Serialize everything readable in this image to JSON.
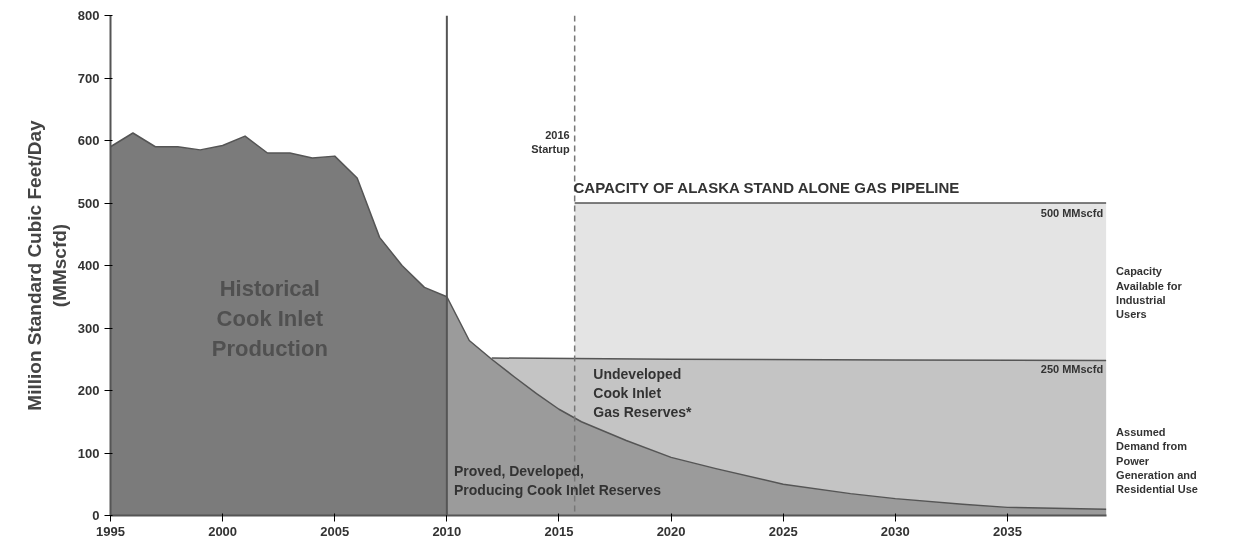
{
  "chart_data": {
    "type": "area",
    "ylabel": "Million Standard Cubic Feet/Day\n(MMscfd)",
    "xlim": [
      1995,
      2039.4
    ],
    "ylim": [
      0,
      800
    ],
    "xticks": [
      1995,
      2000,
      2005,
      2010,
      2015,
      2020,
      2025,
      2030,
      2035
    ],
    "yticks": [
      0,
      100,
      200,
      300,
      400,
      500,
      600,
      700,
      800
    ],
    "grid": false,
    "series": [
      {
        "color": "#e4e4e4",
        "x": [
          2015.7,
          2039.4
        ],
        "values": [
          500,
          500
        ]
      },
      {
        "color": "#c4c4c4",
        "x": [
          2012,
          2020,
          2030,
          2039.4
        ],
        "values": [
          252,
          250,
          249,
          248
        ]
      },
      {
        "color": "#7b7b7b",
        "x": [
          1995,
          1996,
          1997,
          1998,
          1999,
          2000,
          2001,
          2002,
          2003,
          2004,
          2005,
          2006,
          2007,
          2008,
          2009,
          2010
        ],
        "values": [
          590,
          612,
          590,
          590,
          585,
          592,
          607,
          580,
          580,
          572,
          575,
          540,
          445,
          400,
          365,
          350
        ]
      },
      {
        "color": "#9b9b9b",
        "x": [
          2010,
          2011,
          2012,
          2013,
          2014,
          2015,
          2016,
          2018,
          2020,
          2022,
          2025,
          2028,
          2030,
          2033,
          2035,
          2039.4
        ],
        "values": [
          350,
          280,
          250,
          222,
          195,
          170,
          150,
          120,
          93,
          75,
          50,
          35,
          27,
          18,
          13,
          10
        ]
      }
    ],
    "ref_lines": [
      {
        "axis": "x",
        "value": 2010,
        "line_style": "solid",
        "color": "#555555"
      },
      {
        "axis": "x",
        "value": 2015.7,
        "line_style": "dashed",
        "color": "#777777",
        "label": "2016\nStartup"
      }
    ],
    "annotations": [
      "Historical\nCook Inlet\nProduction",
      "Undeveloped\nCook Inlet\nGas Reserves*",
      "Proved, Developed,\nProducing Cook Inlet Reserves",
      "CAPACITY OF ALASKA STAND ALONE GAS PIPELINE",
      {
        "text": "500 MMscfd",
        "y": 500
      },
      {
        "text": "250 MMscfd",
        "y": 250
      },
      "Capacity\nAvailable for\nIndustrial\nUsers",
      "Assumed\nDemand from\nPower\nGeneration and\nResidential Use"
    ]
  }
}
